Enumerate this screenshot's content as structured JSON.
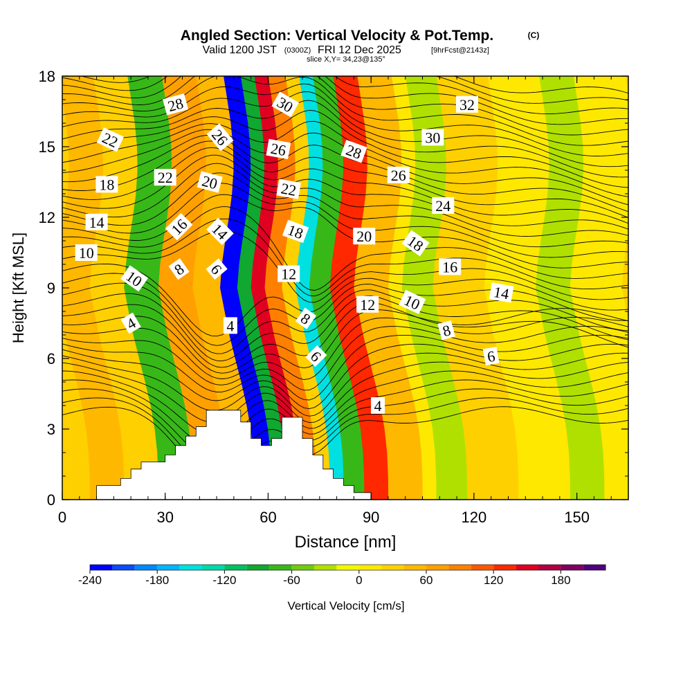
{
  "header": {
    "title": "Angled Section: Vertical Velocity & Pot.Temp.",
    "copyright": "(C)",
    "valid_prefix": "Valid 1200 JST",
    "valid_utc": "(0300Z)",
    "valid_date": "FRI 12 Dec 2025",
    "forecast": "[9hrFcst@2143z]",
    "slice": "slice X,Y= 34,23@135°"
  },
  "chart_data": {
    "type": "heatmap",
    "title": "Angled Section: Vertical Velocity & Pot.Temp.",
    "xlabel": "Distance [nm]",
    "ylabel": "Height [Kft MSL]",
    "xlim": [
      0,
      165
    ],
    "ylim": [
      0,
      18
    ],
    "xticks": [
      0,
      30,
      60,
      90,
      120,
      150
    ],
    "yticks": [
      0,
      3,
      6,
      9,
      12,
      15,
      18
    ],
    "colorbar": {
      "label": "Vertical Velocity [cm/s]",
      "range": [
        -240,
        220
      ],
      "step": 20,
      "tick_values": [
        -240,
        -180,
        -120,
        -60,
        0,
        60,
        120,
        180
      ],
      "colors": [
        "#0000ff",
        "#0a4cff",
        "#0088ff",
        "#00b4ff",
        "#00e0e0",
        "#00d8a8",
        "#00c060",
        "#10a830",
        "#38b818",
        "#70cc10",
        "#b0e000",
        "#f2f800",
        "#ffe800",
        "#ffd000",
        "#ffb800",
        "#ffa000",
        "#ff8000",
        "#ff5800",
        "#ff2800",
        "#e00020",
        "#b00040",
        "#800060",
        "#500080"
      ]
    },
    "vertical_velocity_bands": [
      {
        "x": 0,
        "value": 40
      },
      {
        "x": 10,
        "value": 30
      },
      {
        "x": 20,
        "value": -80
      },
      {
        "x": 30,
        "value": 60
      },
      {
        "x": 40,
        "value": 40
      },
      {
        "x": 48,
        "value": -230
      },
      {
        "x": 53,
        "value": -100
      },
      {
        "x": 57,
        "value": 150
      },
      {
        "x": 61,
        "value": 90
      },
      {
        "x": 66,
        "value": 20
      },
      {
        "x": 70,
        "value": -150
      },
      {
        "x": 74,
        "value": -80
      },
      {
        "x": 80,
        "value": 130
      },
      {
        "x": 87,
        "value": 40
      },
      {
        "x": 97,
        "value": 10
      },
      {
        "x": 101,
        "value": -40
      },
      {
        "x": 110,
        "value": 30
      },
      {
        "x": 125,
        "value": 15
      },
      {
        "x": 140,
        "value": -30
      },
      {
        "x": 150,
        "value": 10
      },
      {
        "x": 165,
        "value": 20
      }
    ],
    "terrain": [
      [
        0,
        0
      ],
      [
        10,
        0
      ],
      [
        10,
        0.6
      ],
      [
        17,
        0.6
      ],
      [
        17,
        0.9
      ],
      [
        20,
        0.9
      ],
      [
        20,
        1.3
      ],
      [
        23,
        1.3
      ],
      [
        23,
        1.6
      ],
      [
        30,
        1.6
      ],
      [
        30,
        1.9
      ],
      [
        33,
        1.9
      ],
      [
        33,
        2.3
      ],
      [
        36,
        2.3
      ],
      [
        36,
        2.7
      ],
      [
        39,
        2.7
      ],
      [
        39,
        3.1
      ],
      [
        42,
        3.1
      ],
      [
        42,
        3.8
      ],
      [
        52,
        3.8
      ],
      [
        52,
        3.3
      ],
      [
        55,
        3.3
      ],
      [
        55,
        2.6
      ],
      [
        58,
        2.6
      ],
      [
        58,
        2.3
      ],
      [
        61,
        2.3
      ],
      [
        61,
        2.6
      ],
      [
        64,
        2.6
      ],
      [
        64,
        3.5
      ],
      [
        70,
        3.5
      ],
      [
        70,
        2.6
      ],
      [
        73,
        2.6
      ],
      [
        73,
        1.9
      ],
      [
        76,
        1.9
      ],
      [
        76,
        1.3
      ],
      [
        79,
        1.3
      ],
      [
        79,
        0.9
      ],
      [
        82,
        0.9
      ],
      [
        82,
        0.6
      ],
      [
        85,
        0.6
      ],
      [
        85,
        0.3
      ],
      [
        90,
        0.3
      ],
      [
        90,
        0
      ],
      [
        165,
        0
      ]
    ],
    "potential_temperature_contour_labels": [
      {
        "text": "4",
        "x": 20,
        "y": 7.5,
        "angle": -30
      },
      {
        "text": "10",
        "x": 21,
        "y": 9.4,
        "angle": 35
      },
      {
        "text": "10",
        "x": 7,
        "y": 10.5,
        "angle": 0
      },
      {
        "text": "14",
        "x": 10,
        "y": 11.8,
        "angle": 0
      },
      {
        "text": "18",
        "x": 13,
        "y": 13.4,
        "angle": 0
      },
      {
        "text": "22",
        "x": 14,
        "y": 15.3,
        "angle": 25
      },
      {
        "text": "28",
        "x": 33,
        "y": 16.8,
        "angle": -15
      },
      {
        "text": "22",
        "x": 30,
        "y": 13.7,
        "angle": 0
      },
      {
        "text": "16",
        "x": 34,
        "y": 11.6,
        "angle": -45
      },
      {
        "text": "8",
        "x": 34,
        "y": 9.8,
        "angle": -35
      },
      {
        "text": "20",
        "x": 43,
        "y": 13.5,
        "angle": 15
      },
      {
        "text": "26",
        "x": 46,
        "y": 15.4,
        "angle": 50
      },
      {
        "text": "14",
        "x": 46,
        "y": 11.4,
        "angle": 45
      },
      {
        "text": "6",
        "x": 45,
        "y": 9.8,
        "angle": 50
      },
      {
        "text": "4",
        "x": 49,
        "y": 7.4,
        "angle": 0
      },
      {
        "text": "30",
        "x": 65,
        "y": 16.8,
        "angle": 30
      },
      {
        "text": "26",
        "x": 63,
        "y": 14.9,
        "angle": 10
      },
      {
        "text": "22",
        "x": 66,
        "y": 13.2,
        "angle": 10
      },
      {
        "text": "18",
        "x": 68,
        "y": 11.4,
        "angle": 20
      },
      {
        "text": "12",
        "x": 66,
        "y": 9.6,
        "angle": 0
      },
      {
        "text": "8",
        "x": 71,
        "y": 7.7,
        "angle": 35
      },
      {
        "text": "6",
        "x": 74,
        "y": 6.1,
        "angle": 45
      },
      {
        "text": "28",
        "x": 85,
        "y": 14.8,
        "angle": 20
      },
      {
        "text": "20",
        "x": 88,
        "y": 11.2,
        "angle": 0
      },
      {
        "text": "12",
        "x": 89,
        "y": 8.3,
        "angle": 0
      },
      {
        "text": "4",
        "x": 92,
        "y": 4.0,
        "angle": 0
      },
      {
        "text": "26",
        "x": 98,
        "y": 13.8,
        "angle": 0
      },
      {
        "text": "18",
        "x": 103,
        "y": 10.9,
        "angle": 35
      },
      {
        "text": "10",
        "x": 102,
        "y": 8.4,
        "angle": 25
      },
      {
        "text": "30",
        "x": 108,
        "y": 15.4,
        "angle": 0
      },
      {
        "text": "24",
        "x": 111,
        "y": 12.5,
        "angle": 0
      },
      {
        "text": "16",
        "x": 113,
        "y": 9.9,
        "angle": 0
      },
      {
        "text": "8",
        "x": 112,
        "y": 7.2,
        "angle": -15
      },
      {
        "text": "32",
        "x": 118,
        "y": 16.8,
        "angle": 0
      },
      {
        "text": "14",
        "x": 128,
        "y": 8.8,
        "angle": 10
      },
      {
        "text": "6",
        "x": 125,
        "y": 6.1,
        "angle": -10
      }
    ]
  }
}
